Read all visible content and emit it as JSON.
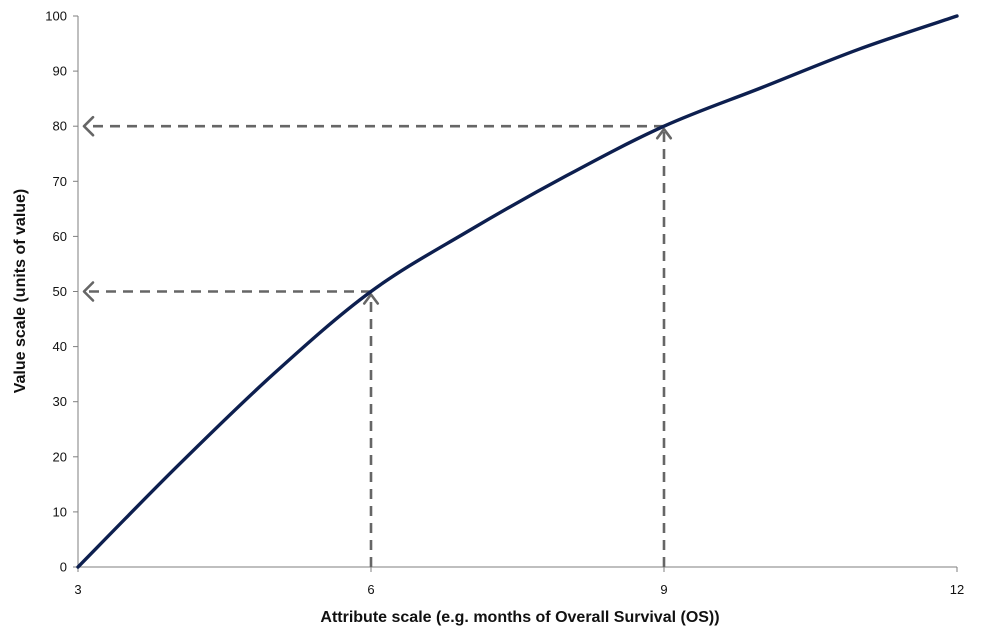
{
  "chart_data": {
    "type": "line",
    "title": "",
    "xlabel": "Attribute scale (e.g. months of Overall Survival (OS))",
    "ylabel": "Value scale (units of value)",
    "xlim": [
      3,
      12
    ],
    "ylim": [
      0,
      100
    ],
    "x_ticks": [
      3,
      6,
      9,
      12
    ],
    "y_ticks": [
      0,
      10,
      20,
      30,
      40,
      50,
      60,
      70,
      80,
      90,
      100
    ],
    "grid": false,
    "legend": "none",
    "series": [
      {
        "x": [
          3,
          4,
          5,
          6,
          7,
          8,
          9,
          10,
          11,
          12
        ],
        "y": [
          0,
          18,
          35,
          50,
          61,
          71,
          80,
          87,
          94,
          100
        ],
        "color": "#0d1f4f"
      }
    ],
    "reference_lines": [
      {
        "x": 6,
        "y": 50
      },
      {
        "x": 9,
        "y": 80
      }
    ],
    "reference_line_color": "#666666"
  }
}
